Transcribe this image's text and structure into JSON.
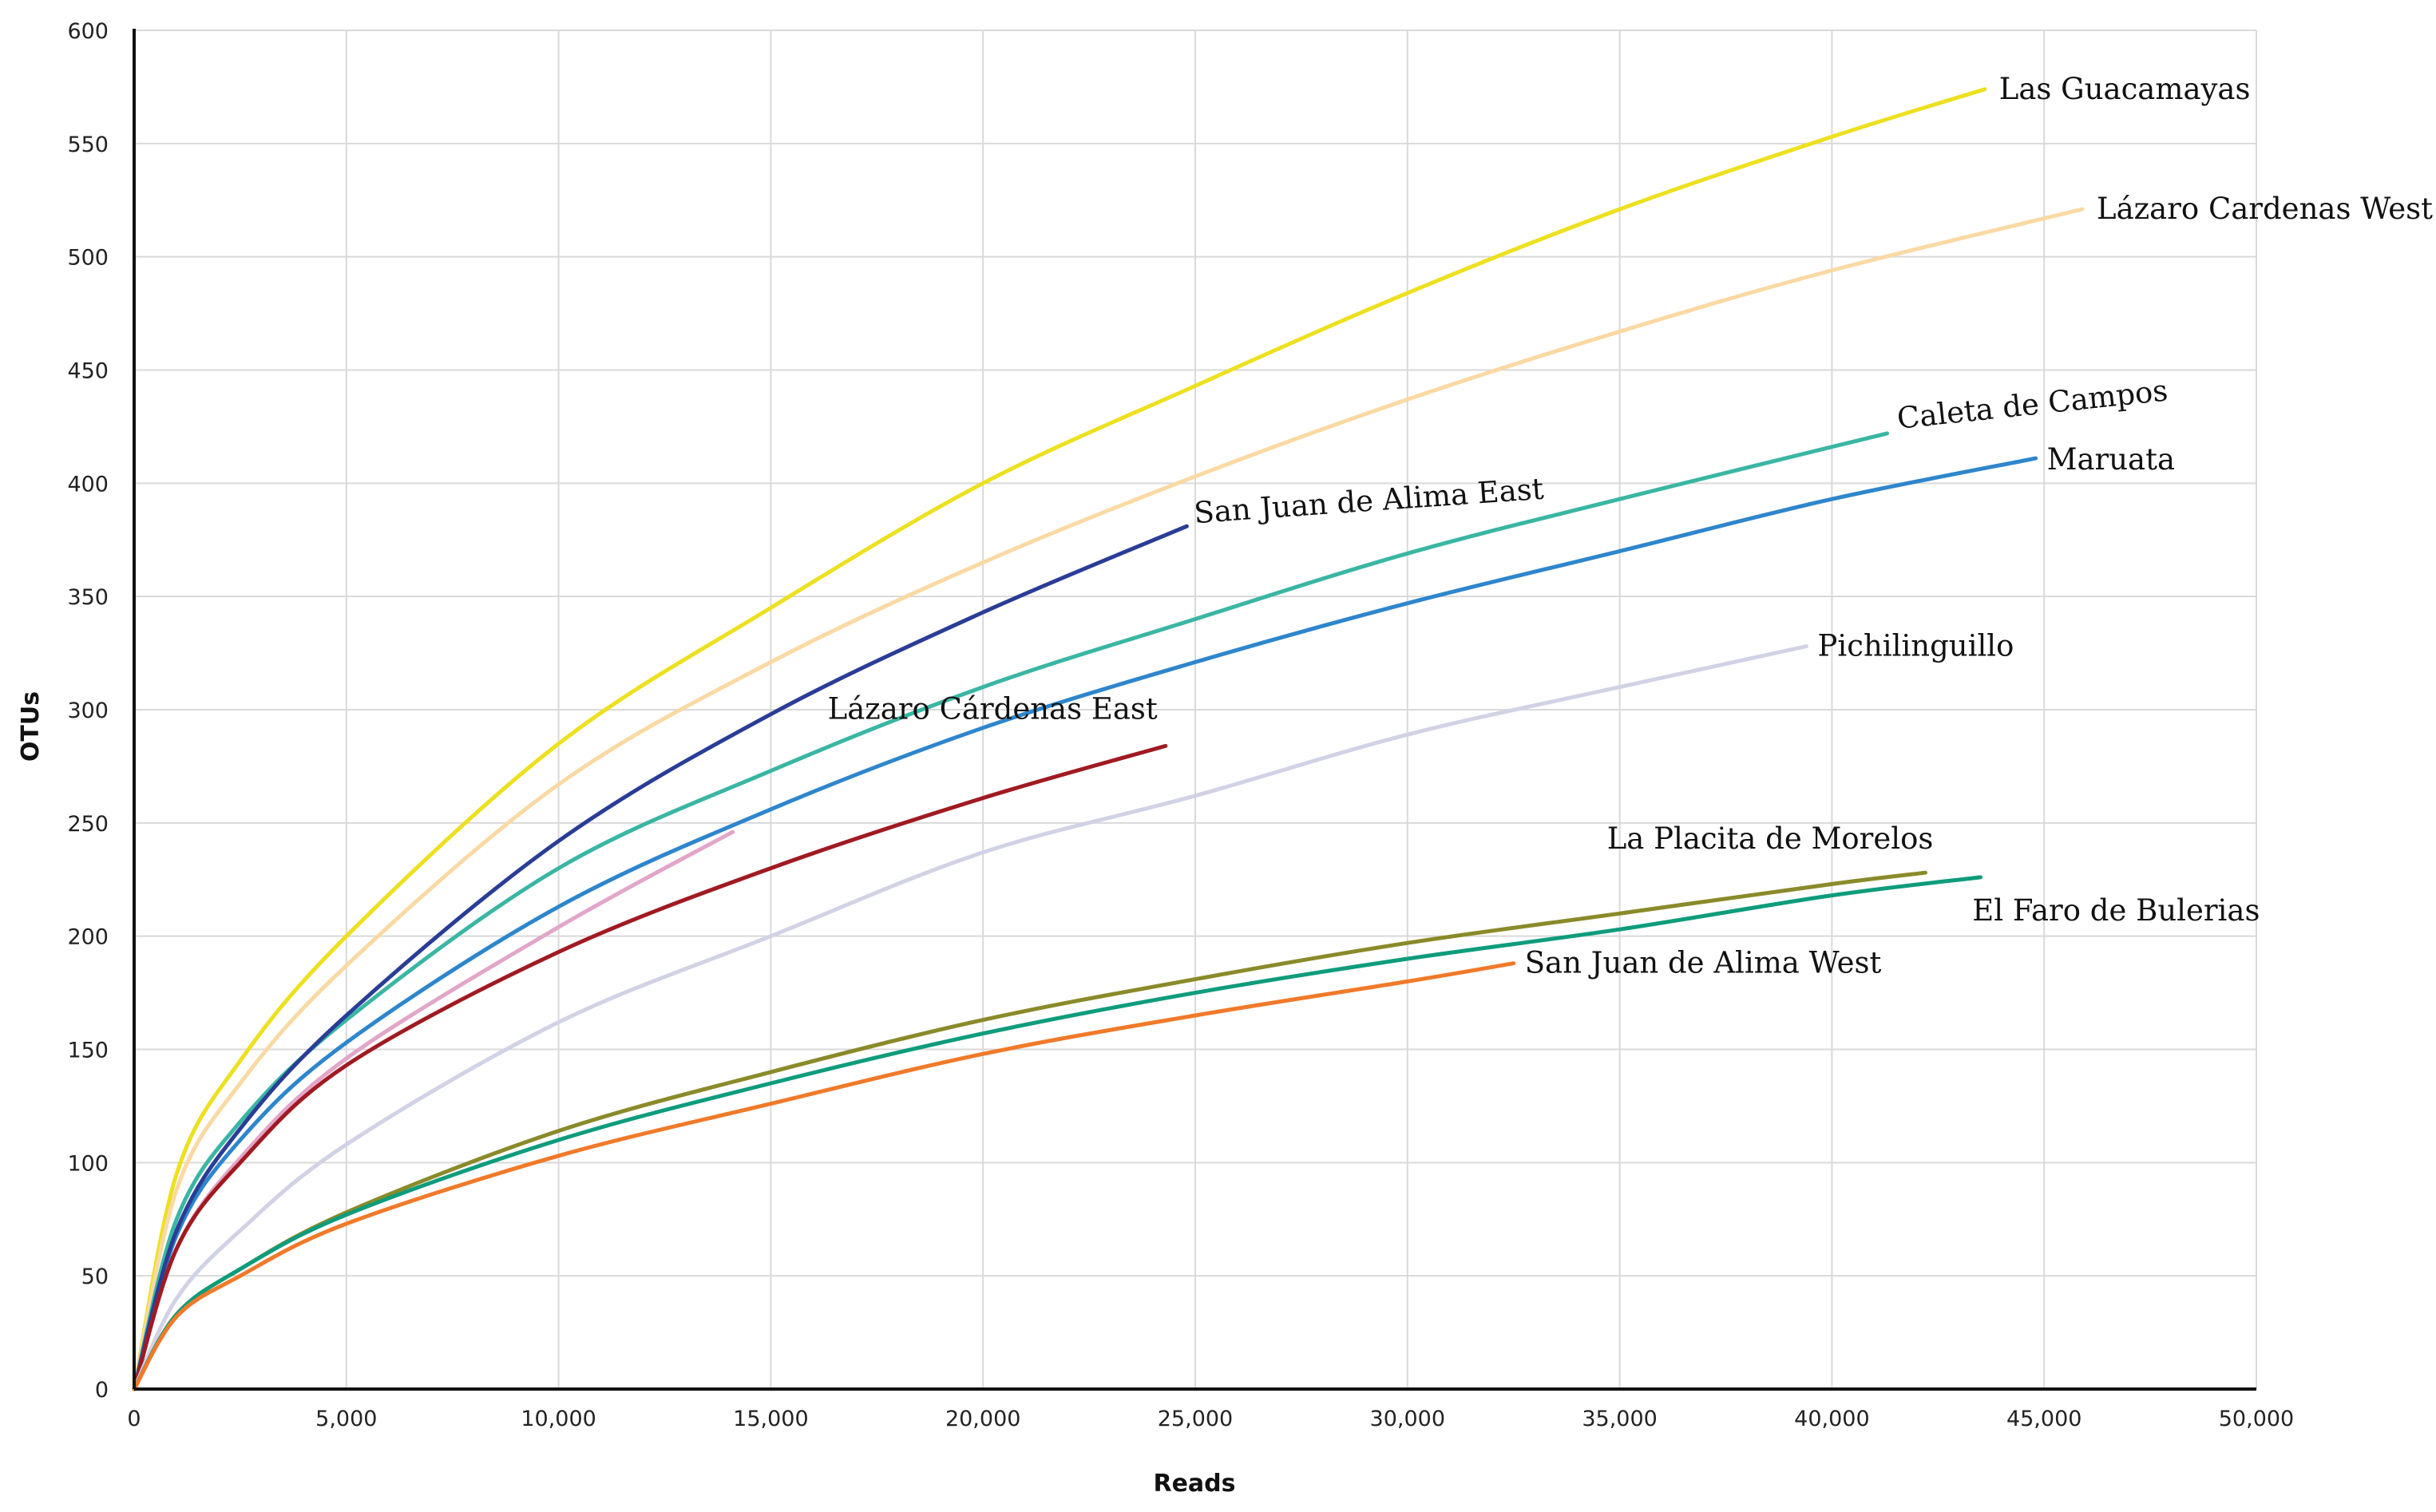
{
  "chart_data": {
    "type": "line",
    "title": "",
    "xlabel": "Reads",
    "ylabel": "OTUs",
    "xlim": [
      0,
      50000
    ],
    "ylim": [
      0,
      600
    ],
    "x_ticks": [
      0,
      5000,
      10000,
      15000,
      20000,
      25000,
      30000,
      35000,
      40000,
      45000,
      50000
    ],
    "x_tick_labels": [
      "0",
      "5,000",
      "10,000",
      "15,000",
      "20,000",
      "25,000",
      "30,000",
      "35,000",
      "40,000",
      "45,000",
      "50,000"
    ],
    "y_ticks": [
      0,
      50,
      100,
      150,
      200,
      250,
      300,
      350,
      400,
      450,
      500,
      550,
      600
    ],
    "y_tick_labels": [
      "0",
      "50",
      "100",
      "150",
      "200",
      "250",
      "300",
      "350",
      "400",
      "450",
      "500",
      "550",
      "600"
    ],
    "grid": true,
    "legend": "labels at line ends",
    "series": [
      {
        "name": "Las Guacamayas",
        "color": "#ede01f",
        "x": [
          0,
          1000,
          2500,
          5000,
          10000,
          15000,
          20000,
          25000,
          30000,
          35000,
          40000,
          43600
        ],
        "y": [
          0,
          95,
          145,
          200,
          285,
          345,
          400,
          443,
          484,
          521,
          553,
          574
        ]
      },
      {
        "name": "Lázaro Cardenas West",
        "color": "#fad9a3",
        "x": [
          0,
          1000,
          2500,
          5000,
          10000,
          15000,
          20000,
          25000,
          30000,
          35000,
          40000,
          45900
        ],
        "y": [
          0,
          88,
          135,
          187,
          267,
          321,
          365,
          403,
          437,
          467,
          494,
          521
        ]
      },
      {
        "name": "Caleta de Campos",
        "color": "#3ab6a3",
        "x": [
          0,
          1000,
          2500,
          5000,
          10000,
          15000,
          20000,
          25000,
          30000,
          35000,
          41300
        ],
        "y": [
          0,
          75,
          118,
          163,
          230,
          273,
          310,
          340,
          369,
          393,
          422
        ]
      },
      {
        "name": "Maruata",
        "color": "#2e86cc",
        "x": [
          0,
          1000,
          2500,
          5000,
          10000,
          15000,
          20000,
          25000,
          30000,
          35000,
          40000,
          44800
        ],
        "y": [
          0,
          68,
          110,
          153,
          213,
          256,
          292,
          321,
          347,
          370,
          393,
          411
        ]
      },
      {
        "name": "San Juan de Alima East",
        "color": "#2a3d96",
        "x": [
          0,
          1000,
          2500,
          5000,
          10000,
          15000,
          20000,
          24800
        ],
        "y": [
          0,
          70,
          115,
          165,
          242,
          298,
          343,
          381
        ]
      },
      {
        "name": "",
        "color": "#e2a6c9",
        "x": [
          0,
          1000,
          2500,
          5000,
          10000,
          14100
        ],
        "y": [
          0,
          62,
          102,
          146,
          204,
          246
        ]
      },
      {
        "name": "Lázaro Cárdenas East",
        "color": "#a01a22",
        "x": [
          0,
          1000,
          2500,
          5000,
          10000,
          15000,
          20000,
          24300
        ],
        "y": [
          0,
          62,
          100,
          143,
          193,
          230,
          261,
          284
        ]
      },
      {
        "name": "Pichilinguillo",
        "color": "#d2d2e6",
        "x": [
          0,
          1000,
          2500,
          5000,
          10000,
          15000,
          20000,
          25000,
          30000,
          35000,
          39400
        ],
        "y": [
          0,
          40,
          70,
          108,
          162,
          200,
          237,
          262,
          289,
          310,
          328
        ]
      },
      {
        "name": "La Placita de Morelos",
        "color": "#8a8a2a",
        "x": [
          0,
          1000,
          2500,
          5000,
          10000,
          15000,
          20000,
          25000,
          30000,
          35000,
          40000,
          42200
        ],
        "y": [
          0,
          33,
          53,
          78,
          114,
          140,
          163,
          181,
          197,
          210,
          223,
          228
        ]
      },
      {
        "name": "El Faro de Bulerias",
        "color": "#0e9c7c",
        "x": [
          0,
          1000,
          2500,
          5000,
          10000,
          15000,
          20000,
          25000,
          30000,
          35000,
          40000,
          43500
        ],
        "y": [
          0,
          33,
          53,
          77,
          110,
          135,
          157,
          175,
          190,
          203,
          218,
          226
        ]
      },
      {
        "name": "San Juan de Alima West",
        "color": "#f07a2a",
        "x": [
          0,
          1000,
          2500,
          5000,
          10000,
          15000,
          20000,
          25000,
          30000,
          32500
        ],
        "y": [
          0,
          32,
          50,
          73,
          103,
          126,
          148,
          165,
          180,
          188
        ]
      }
    ]
  }
}
